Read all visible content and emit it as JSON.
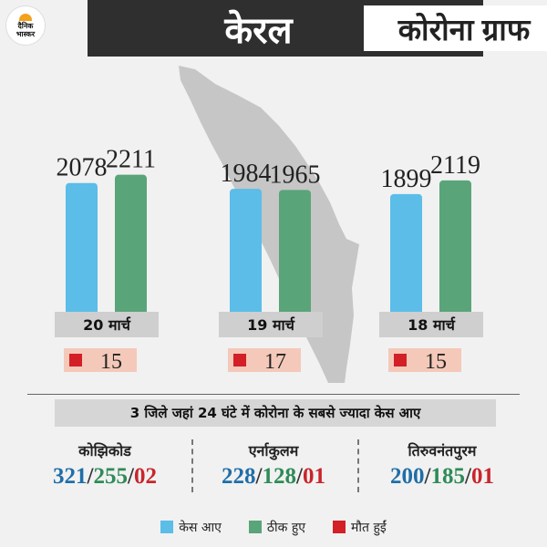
{
  "logo": {
    "line1": "दैनिक",
    "line2": "भास्कर"
  },
  "header": {
    "state": "केरल",
    "title": "कोरोना ग्राफ"
  },
  "colors": {
    "cases": "#5bbde8",
    "recovered": "#5aa47a",
    "deaths": "#d31f26",
    "header_bg": "#2f2f2f"
  },
  "chart_data": {
    "type": "bar",
    "categories": [
      "20 मार्च",
      "19 मार्च",
      "18 मार्च"
    ],
    "series": [
      {
        "name": "केस आए",
        "values": [
          2078,
          1984,
          1899
        ]
      },
      {
        "name": "ठीक हुए",
        "values": [
          2211,
          1965,
          2119
        ]
      },
      {
        "name": "मौत हुईं",
        "values": [
          15,
          17,
          15
        ]
      }
    ]
  },
  "districts_title": "3 जिले जहां 24 घंटे में कोरोना के सबसे ज्यादा केस आए",
  "districts": [
    {
      "name": "कोझिकोड",
      "cases": "321",
      "recovered": "255",
      "deaths": "02"
    },
    {
      "name": "एर्नाकुलम",
      "cases": "228",
      "recovered": "128",
      "deaths": "01"
    },
    {
      "name": "तिरुवनंतपुरम",
      "cases": "200",
      "recovered": "185",
      "deaths": "01"
    }
  ],
  "legend": {
    "cases": "केस आए",
    "recovered": "ठीक हुए",
    "deaths": "मौत हुईं"
  }
}
